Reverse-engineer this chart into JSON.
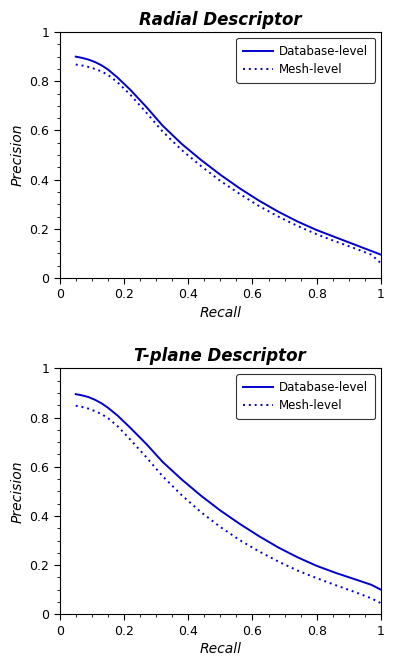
{
  "title1": "Radial Descriptor",
  "title2": "T-plane Descriptor",
  "xlabel": "Recall",
  "ylabel": "Precision",
  "line_color": "#0000CC",
  "legend_solid": "Database-level",
  "legend_dotted": "Mesh-level",
  "xlim": [
    0,
    1
  ],
  "ylim": [
    0,
    1
  ],
  "xticks": [
    0,
    0.2,
    0.4,
    0.6,
    0.8,
    1.0
  ],
  "yticks": [
    0,
    0.2,
    0.4,
    0.6,
    0.8,
    1.0
  ],
  "radial_db_recall": [
    0.05,
    0.07,
    0.09,
    0.11,
    0.13,
    0.15,
    0.18,
    0.22,
    0.27,
    0.32,
    0.38,
    0.44,
    0.5,
    0.56,
    0.62,
    0.68,
    0.74,
    0.8,
    0.86,
    0.92,
    0.97,
    1.0
  ],
  "radial_db_prec": [
    0.9,
    0.895,
    0.888,
    0.878,
    0.865,
    0.848,
    0.815,
    0.765,
    0.695,
    0.62,
    0.545,
    0.48,
    0.42,
    0.365,
    0.315,
    0.27,
    0.23,
    0.195,
    0.165,
    0.135,
    0.11,
    0.095
  ],
  "radial_mesh_recall": [
    0.05,
    0.07,
    0.09,
    0.11,
    0.13,
    0.15,
    0.18,
    0.22,
    0.27,
    0.32,
    0.38,
    0.44,
    0.5,
    0.56,
    0.62,
    0.68,
    0.74,
    0.8,
    0.86,
    0.92,
    0.97,
    1.0
  ],
  "radial_mesh_prec": [
    0.868,
    0.864,
    0.858,
    0.85,
    0.84,
    0.826,
    0.796,
    0.745,
    0.672,
    0.596,
    0.52,
    0.455,
    0.395,
    0.342,
    0.293,
    0.25,
    0.212,
    0.178,
    0.148,
    0.12,
    0.095,
    0.06
  ],
  "tplane_db_recall": [
    0.05,
    0.07,
    0.09,
    0.11,
    0.13,
    0.15,
    0.18,
    0.22,
    0.27,
    0.32,
    0.38,
    0.44,
    0.5,
    0.56,
    0.62,
    0.68,
    0.74,
    0.8,
    0.86,
    0.92,
    0.97,
    1.0
  ],
  "tplane_db_prec": [
    0.895,
    0.89,
    0.883,
    0.872,
    0.858,
    0.84,
    0.808,
    0.758,
    0.692,
    0.62,
    0.548,
    0.482,
    0.422,
    0.368,
    0.318,
    0.272,
    0.232,
    0.197,
    0.168,
    0.142,
    0.12,
    0.1
  ],
  "tplane_mesh_recall": [
    0.05,
    0.07,
    0.09,
    0.11,
    0.13,
    0.15,
    0.18,
    0.22,
    0.27,
    0.32,
    0.38,
    0.44,
    0.5,
    0.56,
    0.62,
    0.68,
    0.74,
    0.8,
    0.86,
    0.92,
    0.97,
    1.0
  ],
  "tplane_mesh_prec": [
    0.848,
    0.843,
    0.836,
    0.826,
    0.814,
    0.798,
    0.765,
    0.71,
    0.638,
    0.562,
    0.484,
    0.415,
    0.355,
    0.302,
    0.256,
    0.215,
    0.178,
    0.147,
    0.118,
    0.09,
    0.065,
    0.045
  ]
}
